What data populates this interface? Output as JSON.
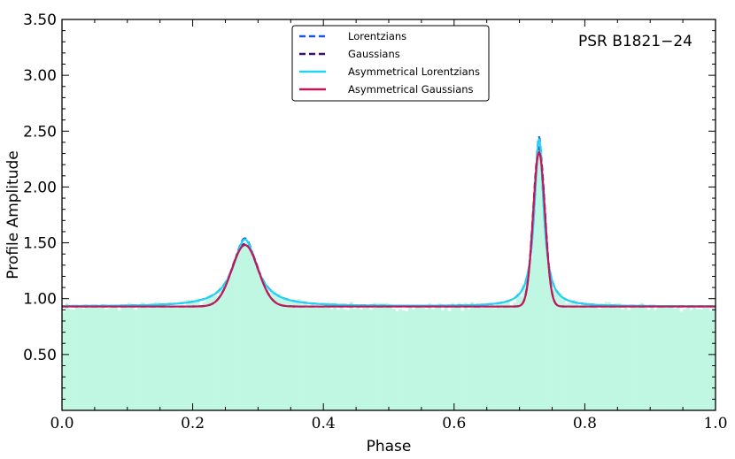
{
  "chart_data": {
    "type": "line",
    "xlabel": "Phase",
    "ylabel": "Profile Amplitude",
    "xlim": [
      0.0,
      1.0
    ],
    "ylim": [
      0.0,
      3.5
    ],
    "x_ticks": [
      0.0,
      0.2,
      0.4,
      0.6,
      0.8,
      1.0
    ],
    "x_tick_labels": [
      "0.0",
      "0.2",
      "0.4",
      "0.6",
      "0.8",
      "1.0"
    ],
    "y_ticks": [
      0.5,
      1.0,
      1.5,
      2.0,
      2.5,
      3.0,
      3.5
    ],
    "y_tick_labels": [
      "0.50",
      "1.00",
      "1.50",
      "2.00",
      "2.50",
      "3.00",
      "3.50"
    ],
    "grid": false,
    "legend_position": "top-center",
    "annotation": "PSR B1821−24",
    "histogram": {
      "color": "#bff7e3",
      "baseline": 0.92,
      "noise_amplitude": 0.04,
      "bins": 200
    },
    "series": [
      {
        "name": "Lorentzians",
        "color": "#1a55e3",
        "style": "dashed",
        "model": "lorentzian",
        "baseline": 0.93,
        "components": [
          {
            "center": 0.28,
            "amplitude": 0.61,
            "width": 0.022
          },
          {
            "center": 0.73,
            "amplitude": 1.52,
            "width": 0.0085
          }
        ]
      },
      {
        "name": "Gaussians",
        "color": "#3b1066",
        "style": "dashed",
        "model": "gaussian",
        "baseline": 0.93,
        "components": [
          {
            "center": 0.28,
            "amplitude": 0.56,
            "sigma": 0.02
          },
          {
            "center": 0.73,
            "amplitude": 1.42,
            "sigma": 0.009
          }
        ]
      },
      {
        "name": "Asymmetrical Lorentzians",
        "color": "#22d3f5",
        "style": "solid",
        "model": "lorentzian",
        "baseline": 0.93,
        "components": [
          {
            "center": 0.28,
            "amplitude": 0.6,
            "width": 0.022
          },
          {
            "center": 0.73,
            "amplitude": 1.5,
            "width": 0.0085
          }
        ]
      },
      {
        "name": "Asymmetrical Gaussians",
        "color": "#c2185b",
        "style": "solid",
        "model": "gaussian",
        "baseline": 0.93,
        "components": [
          {
            "center": 0.28,
            "amplitude": 0.55,
            "sigma": 0.02
          },
          {
            "center": 0.73,
            "amplitude": 1.38,
            "sigma": 0.009
          }
        ]
      }
    ]
  }
}
